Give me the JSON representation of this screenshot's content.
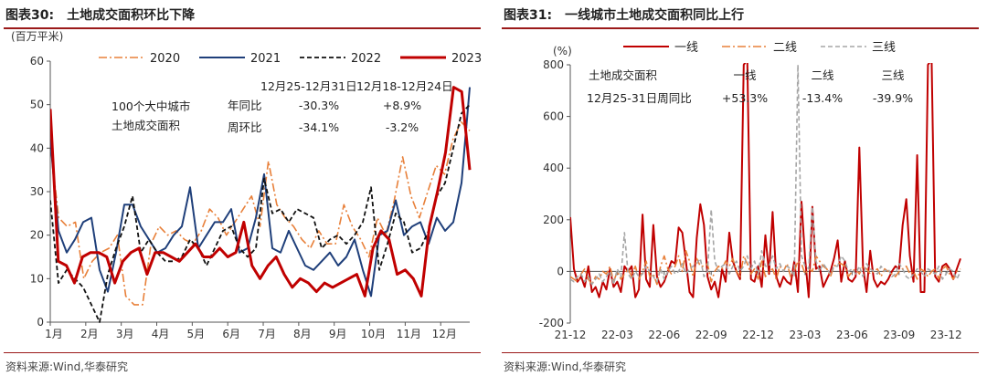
{
  "left": {
    "title_prefix": "图表30:",
    "title_text": "土地成交面积环比下降",
    "source": "资料来源:Wind,华泰研究",
    "chart_data": {
      "type": "line",
      "ylabel": "(百万平米)",
      "ylim": [
        0,
        60
      ],
      "yticks": [
        0,
        10,
        20,
        30,
        40,
        50,
        60
      ],
      "xlim": [
        0,
        52
      ],
      "xticks": [
        {
          "label": "1月",
          "x": 0
        },
        {
          "label": "2月",
          "x": 4.4
        },
        {
          "label": "3月",
          "x": 8.8
        },
        {
          "label": "4月",
          "x": 13.2
        },
        {
          "label": "5月",
          "x": 17.6
        },
        {
          "label": "6月",
          "x": 22
        },
        {
          "label": "7月",
          "x": 26.4
        },
        {
          "label": "8月",
          "x": 30.8
        },
        {
          "label": "9月",
          "x": 35.2
        },
        {
          "label": "10月",
          "x": 39.6
        },
        {
          "label": "11月",
          "x": 44
        },
        {
          "label": "12月",
          "x": 48.4
        }
      ],
      "legend_position": "top",
      "series": [
        {
          "name": "2020",
          "color": "#e8803a",
          "style": "dashdot",
          "width": 1.6,
          "values": [
            41,
            24,
            22,
            23,
            10,
            14,
            16,
            17,
            20,
            6,
            4,
            4,
            18,
            22,
            20,
            21,
            19,
            18,
            21,
            26,
            24,
            20,
            23,
            26,
            29,
            22,
            37,
            27,
            24,
            22,
            19,
            17,
            21,
            18,
            18,
            27,
            22,
            19,
            15,
            24,
            20,
            28,
            38,
            29,
            24,
            30,
            36,
            34,
            42,
            46,
            44
          ]
        },
        {
          "name": "2021",
          "color": "#1f3f7a",
          "style": "solid",
          "width": 2,
          "values": [
            42,
            21,
            16,
            19,
            23,
            24,
            12,
            7,
            16,
            27,
            27,
            22,
            19,
            16,
            17,
            20,
            22,
            31,
            17,
            20,
            23,
            23,
            26,
            16,
            17,
            24,
            34,
            17,
            16,
            21,
            17,
            13,
            12,
            14,
            16,
            13,
            15,
            19,
            12,
            6,
            20,
            21,
            28,
            20,
            22,
            23,
            18,
            24,
            21,
            23,
            32,
            54
          ]
        },
        {
          "name": "2022",
          "color": "#111111",
          "style": "dashed",
          "width": 1.8,
          "values": [
            28,
            9,
            12,
            10,
            8,
            4,
            0,
            11,
            17,
            22,
            29,
            16,
            19,
            16,
            14,
            14,
            15,
            19,
            17,
            13,
            17,
            21,
            22,
            17,
            15,
            17,
            33,
            25,
            26,
            23,
            26,
            25,
            24,
            17,
            19,
            20,
            18,
            20,
            23,
            31,
            12,
            18,
            25,
            23,
            16,
            17,
            21,
            29,
            32,
            40,
            48,
            50
          ]
        },
        {
          "name": "2023",
          "color": "#c00000",
          "style": "solid",
          "width": 3,
          "values": [
            49,
            14,
            13,
            9,
            15,
            16,
            16,
            15,
            9,
            14,
            16,
            17,
            11,
            16,
            16,
            15,
            14,
            16,
            18,
            15,
            15,
            17,
            15,
            16,
            23,
            13,
            10,
            13,
            15,
            11,
            8,
            10,
            9,
            7,
            9,
            8,
            9,
            10,
            11,
            6,
            17,
            21,
            19,
            11,
            12,
            10,
            6,
            22,
            30,
            39,
            54,
            53,
            35
          ]
        }
      ],
      "annotation": {
        "group_line1": "100个大中城市",
        "group_line2": "土地成交面积",
        "col1_header": "12月25-12月31日",
        "col2_header": "12月18-12月24日",
        "row1_label": "年同比",
        "row1_v1": "-30.3%",
        "row1_v2": "+8.9%",
        "row2_label": "周环比",
        "row2_v1": "-34.1%",
        "row2_v2": "-3.2%"
      }
    }
  },
  "right": {
    "title_prefix": "图表31:",
    "title_text": "一线城市土地成交面积同比上行",
    "source": "资料来源:Wind,华泰研究",
    "chart_data": {
      "type": "line",
      "ylabel": "(%)",
      "ylim": [
        -200,
        800
      ],
      "yticks": [
        -200,
        0,
        200,
        400,
        600,
        800
      ],
      "xlim": [
        0,
        108
      ],
      "xticks": [
        {
          "label": "21-12",
          "x": 0
        },
        {
          "label": "22-03",
          "x": 13
        },
        {
          "label": "22-06",
          "x": 26
        },
        {
          "label": "22-09",
          "x": 39
        },
        {
          "label": "22-12",
          "x": 52
        },
        {
          "label": "23-03",
          "x": 65
        },
        {
          "label": "23-06",
          "x": 78
        },
        {
          "label": "23-09",
          "x": 91
        },
        {
          "label": "23-12",
          "x": 104
        }
      ],
      "legend_position": "top",
      "series": [
        {
          "name": "一线",
          "color": "#c00000",
          "style": "solid",
          "width": 2,
          "values": [
            210,
            10,
            -40,
            -20,
            -60,
            20,
            -80,
            -60,
            -100,
            -40,
            -70,
            10,
            -60,
            -40,
            -80,
            20,
            0,
            20,
            -100,
            -70,
            220,
            -30,
            -60,
            180,
            -20,
            -60,
            -40,
            0,
            40,
            30,
            170,
            150,
            40,
            -80,
            -100,
            130,
            260,
            180,
            -20,
            -70,
            -40,
            -100,
            10,
            -40,
            150,
            40,
            0,
            -30,
            800,
            820,
            -30,
            -40,
            20,
            -60,
            140,
            -10,
            230,
            -20,
            -60,
            -20,
            -40,
            -50,
            40,
            -80,
            270,
            50,
            -100,
            250,
            10,
            20,
            -60,
            -30,
            0,
            50,
            120,
            -40,
            40,
            -30,
            -40,
            -20,
            480,
            20,
            -80,
            80,
            -30,
            -60,
            -40,
            -50,
            -30,
            0,
            20,
            10,
            180,
            280,
            60,
            -40,
            450,
            -80,
            -80,
            800,
            820,
            -20,
            -40,
            20,
            30,
            10,
            -30,
            10,
            50
          ]
        },
        {
          "name": "二线",
          "color": "#e8803a",
          "style": "dashdot",
          "width": 1.6,
          "values": [
            -20,
            -30,
            -40,
            -10,
            10,
            -30,
            -50,
            -20,
            -30,
            0,
            -10,
            20,
            -40,
            0,
            -30,
            -10,
            10,
            -20,
            20,
            -30,
            0,
            40,
            -20,
            -10,
            -50,
            20,
            60,
            10,
            -10,
            20,
            60,
            0,
            80,
            40,
            -20,
            50,
            20,
            20,
            30,
            -40,
            0,
            20,
            10,
            40,
            20,
            50,
            0,
            -20,
            60,
            30,
            -10,
            10,
            -30,
            40,
            -20,
            0,
            10,
            -30,
            20,
            0,
            30,
            -20,
            0,
            40,
            30,
            -10,
            10,
            0,
            60,
            40,
            20,
            10,
            -20,
            20,
            30,
            30,
            20,
            -20,
            0,
            10,
            -10,
            20,
            10,
            -10,
            0,
            10,
            -20,
            10,
            0,
            -10,
            -20,
            0,
            10,
            20,
            -10,
            0,
            -30,
            10,
            0,
            -20,
            0,
            10,
            -30,
            10,
            20,
            -10,
            -30,
            0,
            10
          ]
        },
        {
          "name": "三线",
          "color": "#a6a6a6",
          "style": "dashed",
          "width": 1.6,
          "values": [
            -30,
            -40,
            -20,
            -10,
            -40,
            -20,
            -50,
            -30,
            -10,
            -40,
            -20,
            0,
            -50,
            10,
            -20,
            150,
            -10,
            -30,
            0,
            -20,
            -10,
            20,
            0,
            -20,
            -40,
            10,
            -30,
            0,
            20,
            -10,
            0,
            30,
            -10,
            10,
            20,
            30,
            50,
            -20,
            0,
            240,
            40,
            0,
            20,
            30,
            -10,
            20,
            40,
            0,
            20,
            60,
            10,
            40,
            -10,
            80,
            20,
            20,
            60,
            10,
            30,
            0,
            20,
            10,
            -20,
            800,
            60,
            20,
            10,
            250,
            40,
            0,
            30,
            10,
            -10,
            20,
            20,
            60,
            40,
            0,
            10,
            -10,
            20,
            -20,
            30,
            10,
            0,
            -10,
            20,
            0,
            10,
            -20,
            -10,
            30,
            10,
            -20,
            -30,
            -10,
            10,
            0,
            -20,
            10,
            0,
            -10,
            20,
            -30,
            -10,
            10,
            0,
            -30,
            0
          ]
        }
      ],
      "annotation": {
        "row1_label": "土地成交面积",
        "row2_label": "12月25-31日周同比",
        "col1_header": "一线",
        "col2_header": "二线",
        "col3_header": "三线",
        "v1": "+53.3%",
        "v2": "-13.4%",
        "v3": "-39.9%"
      }
    }
  }
}
